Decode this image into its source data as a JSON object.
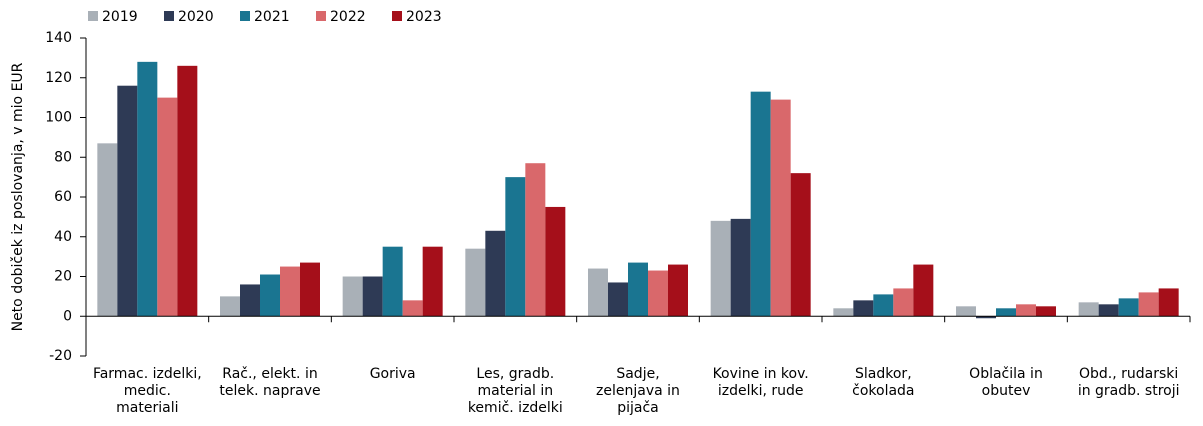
{
  "chart_data": {
    "type": "bar",
    "y_label": "Neto dobiček iz poslovanja, v mio EUR",
    "categories": [
      "Farmac. izdelki,\nmedic.\nmateriali",
      "Rač., elekt. in\ntelek. naprave",
      "Goriva",
      "Les, gradb.\nmaterial in\nkemič. izdelki",
      "Sadje,\nzelenjava in\npijača",
      "Kovine in kov.\nizdelki, rude",
      "Sladkor,\nčokolada",
      "Oblačila in\nobutev",
      "Obd., rudarski\nin gradb. stroji"
    ],
    "series": [
      {
        "name": "2019",
        "color": "#a9b0b7",
        "values": [
          87,
          10,
          20,
          34,
          24,
          48,
          4,
          5,
          7
        ]
      },
      {
        "name": "2020",
        "color": "#2e3a55",
        "values": [
          116,
          16,
          20,
          43,
          17,
          49,
          8,
          -1,
          6
        ]
      },
      {
        "name": "2021",
        "color": "#1a7591",
        "values": [
          128,
          21,
          35,
          70,
          27,
          113,
          11,
          4,
          9
        ]
      },
      {
        "name": "2022",
        "color": "#d9686b",
        "values": [
          110,
          25,
          8,
          77,
          23,
          109,
          14,
          6,
          12
        ]
      },
      {
        "name": "2023",
        "color": "#a50f1a",
        "values": [
          126,
          27,
          35,
          55,
          26,
          72,
          26,
          5,
          14
        ]
      }
    ],
    "ylim": [
      -20,
      140
    ],
    "yticks": [
      -20,
      0,
      20,
      40,
      60,
      80,
      100,
      120,
      140
    ],
    "grid": false,
    "legend": "top-left"
  }
}
